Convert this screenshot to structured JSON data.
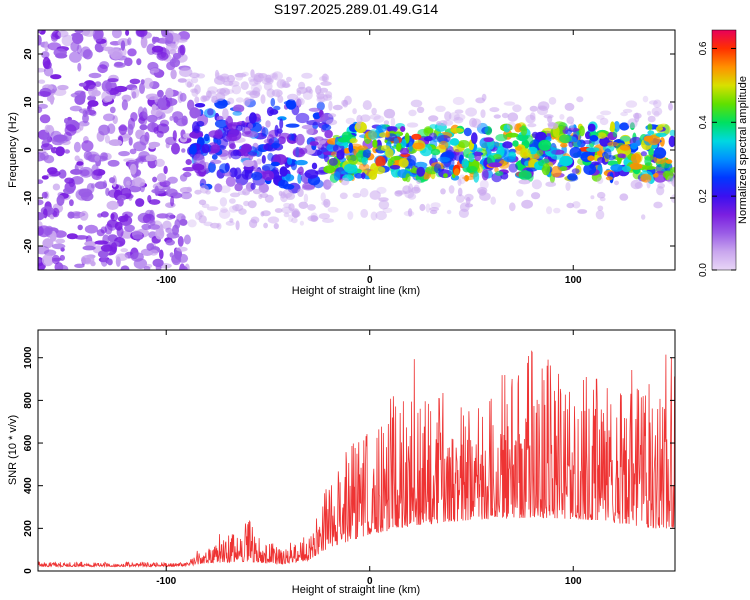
{
  "figure_title": "S197.2025.289.01.49.G14",
  "chart_data": [
    {
      "type": "heatmap",
      "xlabel": "Height of straight line (km)",
      "ylabel": "Frequency (Hz)",
      "xlim": [
        -163,
        150
      ],
      "ylim": [
        -25,
        25
      ],
      "xticks": [
        -100,
        0,
        100
      ],
      "xtick_labels": [
        "-100",
        "0",
        "100"
      ],
      "yticks": [
        -20,
        -10,
        0,
        10,
        20
      ],
      "ytick_labels": [
        "-20",
        "-10",
        "0",
        "10",
        "20"
      ],
      "colorbar": {
        "label": "Normalized spectral amplitude",
        "range": [
          0.0,
          0.65
        ],
        "ticks": [
          0.0,
          0.2,
          0.4,
          0.6
        ],
        "tick_labels": [
          "0.0",
          "0.2",
          "0.4",
          "0.6"
        ],
        "colors": [
          "#e8d6f6",
          "#c9a6ee",
          "#9a5ce6",
          "#7a1fe0",
          "#3a10f0",
          "#0038ff",
          "#0090ff",
          "#00d8e0",
          "#00e060",
          "#60e000",
          "#d8e000",
          "#ff9000",
          "#ff3000",
          "#e8005a"
        ]
      },
      "regions": [
        {
          "name": "noise",
          "x_range": [
            -163,
            -89
          ],
          "freq_band": [
            -25,
            25
          ],
          "amplitude": 0.12
        },
        {
          "name": "transition",
          "x_range": [
            -89,
            -20
          ],
          "freq_band": [
            -8,
            10
          ],
          "amplitude": 0.2
        },
        {
          "name": "signal",
          "x_range": [
            -20,
            150
          ],
          "freq_band": [
            -6,
            5
          ],
          "amplitude": 0.4,
          "peak_amplitude": 0.6
        }
      ]
    },
    {
      "type": "line",
      "xlabel": "Height of straight line (km)",
      "ylabel": "SNR (10 * v/v)",
      "xlim": [
        -163,
        150
      ],
      "ylim": [
        0,
        1130
      ],
      "xticks": [
        -100,
        0,
        100
      ],
      "xtick_labels": [
        "-100",
        "0",
        "100"
      ],
      "yticks": [
        0,
        200,
        400,
        600,
        800,
        1000
      ],
      "ytick_labels": [
        "0",
        "200",
        "400",
        "600",
        "800",
        "1000"
      ],
      "color": "#ee3333",
      "envelope": [
        {
          "x": -163,
          "base": 20,
          "peak": 45
        },
        {
          "x": -90,
          "base": 22,
          "peak": 40
        },
        {
          "x": -82,
          "base": 35,
          "peak": 130
        },
        {
          "x": -60,
          "base": 45,
          "peak": 250
        },
        {
          "x": -45,
          "base": 30,
          "peak": 110
        },
        {
          "x": -30,
          "base": 50,
          "peak": 180
        },
        {
          "x": -20,
          "base": 110,
          "peak": 420
        },
        {
          "x": -10,
          "base": 140,
          "peak": 600
        },
        {
          "x": 0,
          "base": 170,
          "peak": 650
        },
        {
          "x": 20,
          "base": 210,
          "peak": 1020
        },
        {
          "x": 50,
          "base": 240,
          "peak": 800
        },
        {
          "x": 80,
          "base": 250,
          "peak": 1050
        },
        {
          "x": 110,
          "base": 240,
          "peak": 900
        },
        {
          "x": 140,
          "base": 200,
          "peak": 970
        },
        {
          "x": 150,
          "base": 200,
          "peak": 1130
        }
      ]
    }
  ]
}
